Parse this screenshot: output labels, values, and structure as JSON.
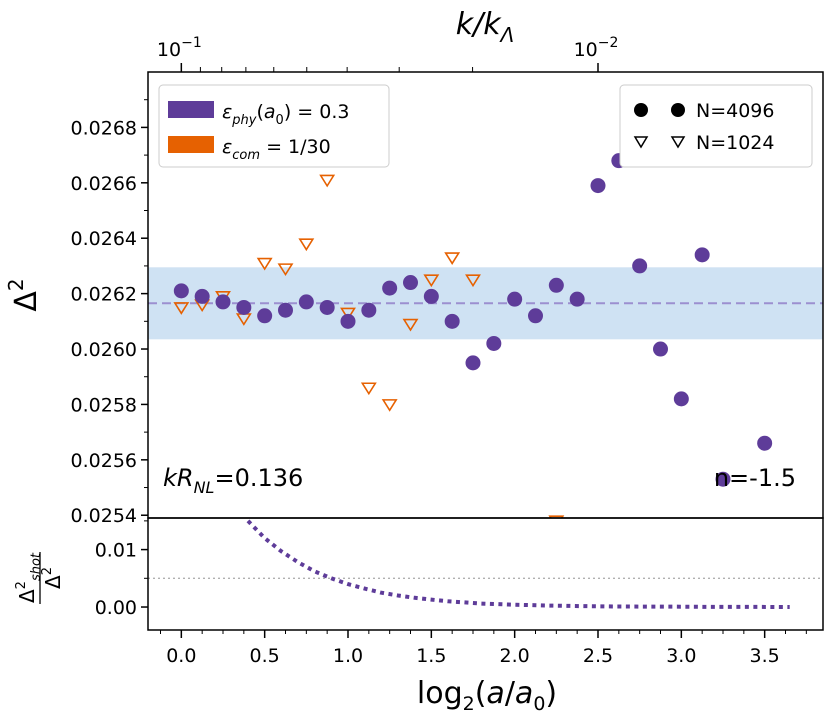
{
  "chart_data": [
    {
      "type": "scatter",
      "panel": "main",
      "ylabel": "Δ²",
      "top_xlabel": "k/k_Λ",
      "top_ticks": [
        {
          "label_base": "10",
          "label_exp": "−1",
          "x": 0.0
        },
        {
          "label_base": "10",
          "label_exp": "−2",
          "x": 2.5
        }
      ],
      "xlim": [
        -0.2,
        3.85
      ],
      "ylim": [
        0.02539,
        0.027
      ],
      "yticks": [
        0.0254,
        0.0256,
        0.0258,
        0.026,
        0.0262,
        0.0264,
        0.0266,
        0.0268
      ],
      "ytick_labels": [
        "0.0254",
        "0.0256",
        "0.0258",
        "0.0260",
        "0.0262",
        "0.0264",
        "0.0266",
        "0.0268"
      ],
      "mean_line": 0.026165,
      "band": [
        0.026035,
        0.026295
      ],
      "series": [
        {
          "name": "N=4096",
          "marker": "circle",
          "color": "#5e3c99",
          "x": [
            0.0,
            0.125,
            0.25,
            0.375,
            0.5,
            0.625,
            0.75,
            0.875,
            1.0,
            1.125,
            1.25,
            1.375,
            1.5,
            1.625,
            1.75,
            1.875,
            2.0,
            2.125,
            2.25,
            2.375,
            2.5,
            2.625,
            2.75,
            2.875,
            3.0,
            3.125,
            3.25,
            3.5
          ],
          "y": [
            0.02621,
            0.02619,
            0.02617,
            0.02615,
            0.02612,
            0.02614,
            0.02617,
            0.02615,
            0.0261,
            0.02614,
            0.02622,
            0.02624,
            0.02619,
            0.0261,
            0.02595,
            0.02602,
            0.02618,
            0.02612,
            0.02623,
            0.02618,
            0.02659,
            0.02668,
            0.0263,
            0.026,
            0.02582,
            0.02634,
            0.02553,
            0.02566
          ]
        },
        {
          "name": "N=1024",
          "marker": "triangle-down-open",
          "color": "#e66101",
          "x": [
            0.0,
            0.125,
            0.25,
            0.375,
            0.5,
            0.625,
            0.75,
            0.875,
            1.0,
            1.125,
            1.25,
            1.375,
            1.5,
            1.625,
            1.75,
            2.25
          ],
          "y": [
            0.02615,
            0.02616,
            0.02619,
            0.02611,
            0.02631,
            0.02629,
            0.02638,
            0.02661,
            0.02613,
            0.02586,
            0.0258,
            0.02609,
            0.02625,
            0.02633,
            0.02625,
            0.02538
          ]
        }
      ],
      "legend_left": [
        {
          "label": "ε_phy(a_0) = 0.3",
          "color": "#5e3c99"
        },
        {
          "label": "ε_com = 1/30",
          "color": "#e66101"
        }
      ],
      "legend_right": [
        {
          "label": "N=4096",
          "marker": "circle"
        },
        {
          "label": "N=1024",
          "marker": "triangle-down-open"
        }
      ],
      "annotations": {
        "left": "kR_NL=0.136",
        "right": "n=-1.5"
      },
      "colors": {
        "band": "#cfe2f3",
        "mean_line": "#9c8fd0",
        "purple": "#5e3c99",
        "orange": "#e66101"
      }
    },
    {
      "type": "line",
      "panel": "lower",
      "xlabel": "log₂(a/a₀)",
      "ylabel": "Δ²_shot / Δ²",
      "xlim": [
        -0.2,
        3.85
      ],
      "ylim": [
        -0.004,
        0.0155
      ],
      "xticks": [
        0.0,
        0.5,
        1.0,
        1.5,
        2.0,
        2.5,
        3.0,
        3.5
      ],
      "xtick_labels": [
        "0.0",
        "0.5",
        "1.0",
        "1.5",
        "2.0",
        "2.5",
        "3.0",
        "3.5"
      ],
      "yticks": [
        0.0,
        0.01
      ],
      "ytick_labels": [
        "0.00",
        "0.01"
      ],
      "reference_line": 0.005,
      "series": [
        {
          "name": "shot noise ratio",
          "style": "dotted",
          "color": "#5e3c99",
          "x": [
            0.4,
            0.5,
            0.6,
            0.7,
            0.8,
            0.9,
            1.0,
            1.1,
            1.2,
            1.3,
            1.4,
            1.5,
            1.6,
            1.7,
            1.8,
            2.0,
            2.2,
            2.4,
            2.6,
            2.8,
            3.0,
            3.2,
            3.4,
            3.65
          ],
          "y": [
            0.015,
            0.012,
            0.0097,
            0.0078,
            0.0062,
            0.005,
            0.004,
            0.0032,
            0.0025,
            0.002,
            0.0016,
            0.0013,
            0.001,
            0.0008,
            0.0006,
            0.0004,
            0.00025,
            0.00016,
            0.0001,
            7e-05,
            5e-05,
            3e-05,
            2e-05,
            1e-05
          ]
        }
      ]
    }
  ]
}
